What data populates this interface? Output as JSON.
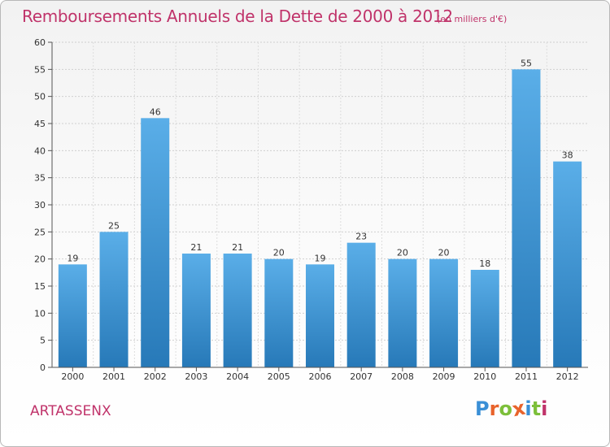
{
  "chart_data": {
    "type": "bar",
    "title": "Remboursements Annuels de la Dette de 2000 à 2012",
    "subtitle": "(en milliers d'€)",
    "categories": [
      "2000",
      "2001",
      "2002",
      "2003",
      "2004",
      "2005",
      "2006",
      "2007",
      "2008",
      "2009",
      "2010",
      "2011",
      "2012"
    ],
    "values": [
      19,
      25,
      46,
      21,
      21,
      20,
      19,
      23,
      20,
      20,
      18,
      55,
      38
    ],
    "ylim": [
      0,
      60
    ],
    "yticks": [
      0,
      5,
      10,
      15,
      20,
      25,
      30,
      35,
      40,
      45,
      50,
      55,
      60
    ],
    "grid": true,
    "bar_color_top": "#5aaee8",
    "bar_color_bottom": "#2779b8"
  },
  "footer": {
    "place": "ARTASSENX",
    "logo_text": "Proxiti",
    "logo_colors": [
      "#3a8fd6",
      "#e8632b",
      "#7cbf3a",
      "#e8632b",
      "#3a8fd6",
      "#7cbf3a",
      "#c0336a"
    ]
  }
}
